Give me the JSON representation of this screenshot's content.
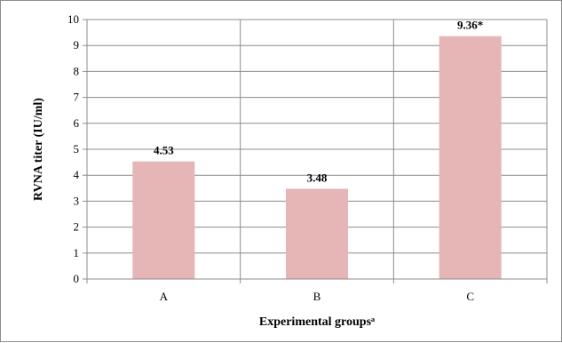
{
  "chart_data": {
    "type": "bar",
    "title": "",
    "xlabel": "Experimental groupsᵃ",
    "ylabel": "RVNA titer (IU/ml)",
    "categories": [
      "A",
      "B",
      "C"
    ],
    "values": [
      4.53,
      3.48,
      9.36
    ],
    "data_labels": [
      "4.53",
      "3.48",
      "9.36*"
    ],
    "ylim": [
      0,
      10
    ],
    "yticks": [
      0,
      1,
      2,
      3,
      4,
      5,
      6,
      7,
      8,
      9,
      10
    ],
    "grid": true,
    "legend": "none",
    "bar_color": "#e6b5b5",
    "grid_color": "#8c8c8c",
    "axis_color": "#8c8c8c"
  }
}
